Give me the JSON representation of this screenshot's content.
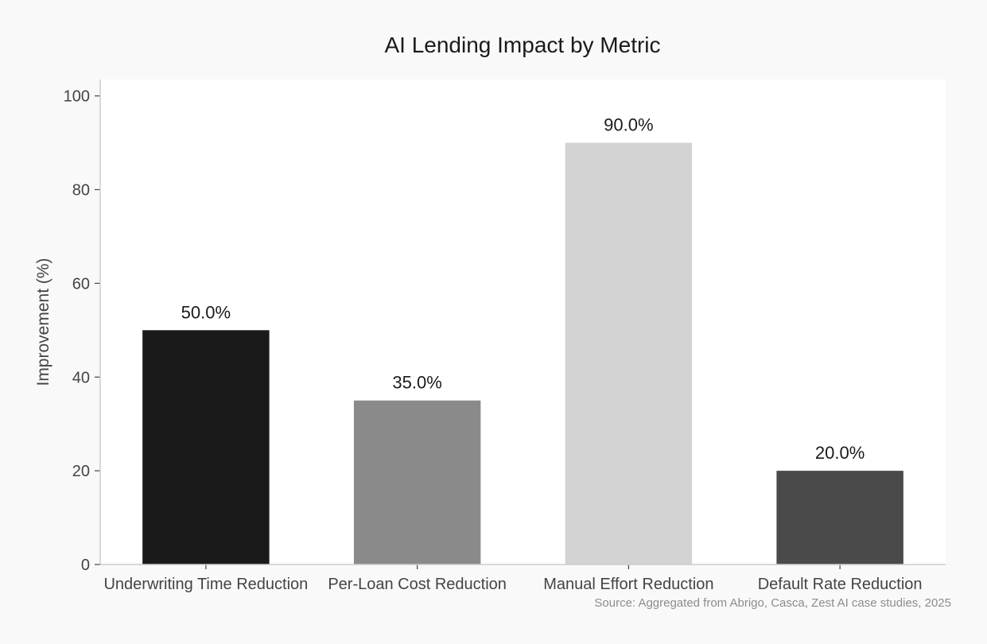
{
  "chart_data": {
    "type": "bar",
    "title": "AI Lending Impact by Metric",
    "xlabel": "",
    "ylabel": "Improvement (%)",
    "categories": [
      "Underwriting Time Reduction",
      "Per-Loan Cost Reduction",
      "Manual Effort Reduction",
      "Default Rate Reduction"
    ],
    "values": [
      50.0,
      35.0,
      90.0,
      20.0
    ],
    "value_labels": [
      "50.0%",
      "35.0%",
      "90.0%",
      "20.0%"
    ],
    "bar_colors": [
      "#1a1a1a",
      "#8a8a8a",
      "#d3d3d3",
      "#4a4a4a"
    ],
    "ylim": [
      0,
      103.5
    ],
    "yticks": [
      0,
      20,
      40,
      60,
      80,
      100
    ],
    "grid": false,
    "legend": "none",
    "source": "Source: Aggregated from Abrigo, Casca, Zest AI case studies, 2025"
  }
}
